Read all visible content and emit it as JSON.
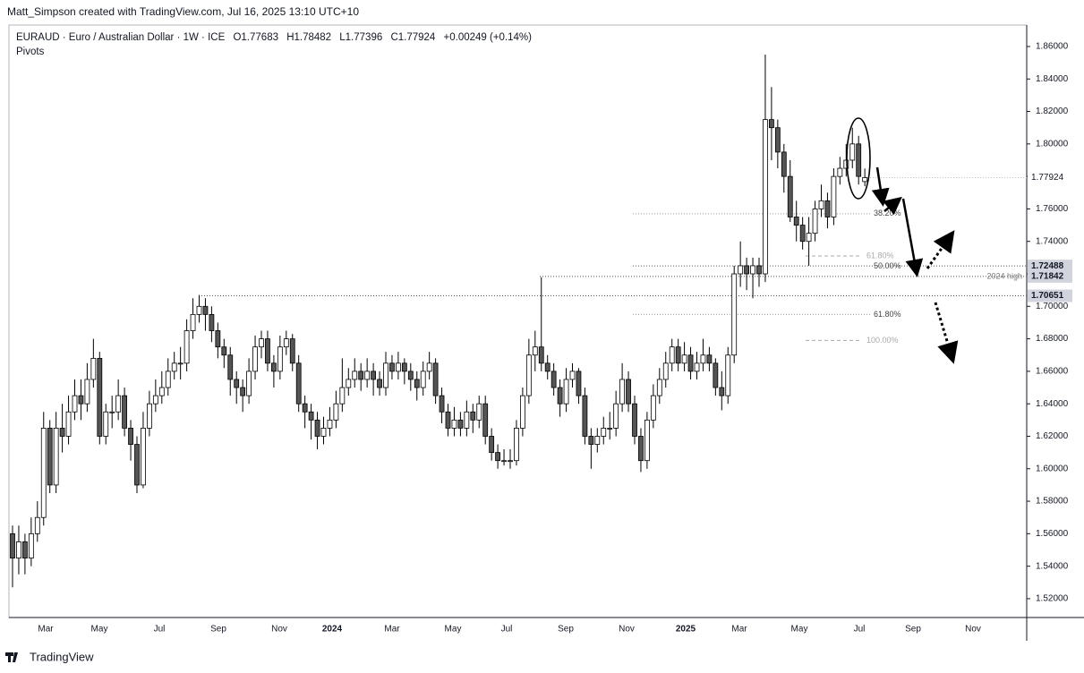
{
  "header": "Matt_Simpson created with TradingView.com, Jul 16, 2025 13:10 UTC+10",
  "footer": "TradingView",
  "chart_data": {
    "type": "candlestick",
    "title": "EURAUD · Euro / Australian Dollar · 1W · ICE",
    "legend": [
      "O1.77683",
      "H1.78482",
      "L1.77396",
      "C1.77924",
      "+0.00249 (+0.14%)"
    ],
    "indicator": "Pivots",
    "ylim": [
      1.5084,
      1.8732
    ],
    "yticks": [
      {
        "value": 1.52,
        "label": "1.52000"
      },
      {
        "value": 1.54,
        "label": "1.54000"
      },
      {
        "value": 1.56,
        "label": "1.56000"
      },
      {
        "value": 1.58,
        "label": "1.58000"
      },
      {
        "value": 1.6,
        "label": "1.60000"
      },
      {
        "value": 1.62,
        "label": "1.62000"
      },
      {
        "value": 1.64,
        "label": "1.64000"
      },
      {
        "value": 1.66,
        "label": "1.66000"
      },
      {
        "value": 1.68,
        "label": "1.68000"
      },
      {
        "value": 1.7,
        "label": "1.70000"
      },
      {
        "value": 1.72,
        "label": "1.72000"
      },
      {
        "value": 1.74,
        "label": "1.74000"
      },
      {
        "value": 1.76,
        "label": "1.76000"
      },
      {
        "value": 1.78,
        "label": "1.78000"
      },
      {
        "value": 1.8,
        "label": "1.80000"
      },
      {
        "value": 1.82,
        "label": "1.82000"
      },
      {
        "value": 1.84,
        "label": "1.84000"
      },
      {
        "value": 1.86,
        "label": "1.86000"
      }
    ],
    "x_labels": [
      "Mar",
      "May",
      "Jul",
      "Sep",
      "Nov",
      "2024",
      "Mar",
      "May",
      "Jul",
      "Sep",
      "Nov",
      "2025",
      "Mar",
      "May",
      "Jul",
      "Sep",
      "Nov"
    ],
    "bull_color": "#ffffff",
    "bear_color": "#555555",
    "levels": [
      {
        "value": 1.70651
      },
      {
        "value": 1.71842,
        "label": "2024 high"
      },
      {
        "value": 1.72488
      }
    ],
    "fib_levels": [
      {
        "label": "38.20%",
        "value": 1.757
      },
      {
        "label": "50.00%",
        "value": 1.7247
      },
      {
        "label": "61.80%",
        "value": 1.695
      }
    ],
    "fib_ext": [
      {
        "label": "61.80%",
        "value": 1.731
      },
      {
        "label": "100.00%",
        "value": 1.679
      }
    ],
    "candles": [
      [
        1.56,
        1.565,
        1.527,
        1.545
      ],
      [
        1.545,
        1.565,
        1.535,
        1.555
      ],
      [
        1.555,
        1.56,
        1.535,
        1.545
      ],
      [
        1.545,
        1.57,
        1.54,
        1.56
      ],
      [
        1.56,
        1.58,
        1.555,
        1.57
      ],
      [
        1.57,
        1.635,
        1.565,
        1.625
      ],
      [
        1.625,
        1.63,
        1.585,
        1.59
      ],
      [
        1.59,
        1.635,
        1.585,
        1.625
      ],
      [
        1.625,
        1.64,
        1.61,
        1.62
      ],
      [
        1.62,
        1.645,
        1.615,
        1.635
      ],
      [
        1.635,
        1.655,
        1.63,
        1.645
      ],
      [
        1.645,
        1.655,
        1.63,
        1.64
      ],
      [
        1.64,
        1.665,
        1.635,
        1.655
      ],
      [
        1.655,
        1.68,
        1.65,
        1.668
      ],
      [
        1.668,
        1.672,
        1.615,
        1.62
      ],
      [
        1.62,
        1.64,
        1.615,
        1.635
      ],
      [
        1.635,
        1.645,
        1.625,
        1.635
      ],
      [
        1.635,
        1.655,
        1.63,
        1.645
      ],
      [
        1.645,
        1.65,
        1.62,
        1.625
      ],
      [
        1.625,
        1.63,
        1.605,
        1.615
      ],
      [
        1.615,
        1.62,
        1.585,
        1.59
      ],
      [
        1.59,
        1.635,
        1.588,
        1.625
      ],
      [
        1.625,
        1.648,
        1.62,
        1.64
      ],
      [
        1.64,
        1.655,
        1.635,
        1.645
      ],
      [
        1.645,
        1.66,
        1.64,
        1.65
      ],
      [
        1.65,
        1.668,
        1.645,
        1.66
      ],
      [
        1.66,
        1.672,
        1.655,
        1.665
      ],
      [
        1.665,
        1.675,
        1.655,
        1.665
      ],
      [
        1.665,
        1.692,
        1.66,
        1.685
      ],
      [
        1.685,
        1.705,
        1.68,
        1.695
      ],
      [
        1.695,
        1.707,
        1.69,
        1.7
      ],
      [
        1.7,
        1.705,
        1.685,
        1.695
      ],
      [
        1.695,
        1.7,
        1.678,
        1.685
      ],
      [
        1.685,
        1.69,
        1.668,
        1.675
      ],
      [
        1.675,
        1.68,
        1.662,
        1.67
      ],
      [
        1.67,
        1.675,
        1.645,
        1.655
      ],
      [
        1.655,
        1.66,
        1.64,
        1.65
      ],
      [
        1.65,
        1.655,
        1.635,
        1.645
      ],
      [
        1.645,
        1.668,
        1.64,
        1.66
      ],
      [
        1.66,
        1.682,
        1.655,
        1.675
      ],
      [
        1.675,
        1.685,
        1.668,
        1.68
      ],
      [
        1.68,
        1.685,
        1.66,
        1.665
      ],
      [
        1.665,
        1.67,
        1.65,
        1.66
      ],
      [
        1.66,
        1.682,
        1.655,
        1.675
      ],
      [
        1.675,
        1.685,
        1.67,
        1.68
      ],
      [
        1.68,
        1.683,
        1.66,
        1.665
      ],
      [
        1.665,
        1.67,
        1.635,
        1.64
      ],
      [
        1.64,
        1.645,
        1.625,
        1.635
      ],
      [
        1.635,
        1.64,
        1.618,
        1.63
      ],
      [
        1.63,
        1.635,
        1.612,
        1.62
      ],
      [
        1.62,
        1.632,
        1.615,
        1.625
      ],
      [
        1.625,
        1.638,
        1.62,
        1.63
      ],
      [
        1.63,
        1.648,
        1.625,
        1.64
      ],
      [
        1.64,
        1.668,
        1.635,
        1.65
      ],
      [
        1.65,
        1.662,
        1.645,
        1.655
      ],
      [
        1.655,
        1.668,
        1.65,
        1.66
      ],
      [
        1.66,
        1.665,
        1.648,
        1.655
      ],
      [
        1.655,
        1.668,
        1.65,
        1.66
      ],
      [
        1.66,
        1.665,
        1.645,
        1.655
      ],
      [
        1.655,
        1.66,
        1.645,
        1.65
      ],
      [
        1.65,
        1.672,
        1.645,
        1.665
      ],
      [
        1.665,
        1.67,
        1.655,
        1.66
      ],
      [
        1.66,
        1.672,
        1.655,
        1.665
      ],
      [
        1.665,
        1.668,
        1.652,
        1.66
      ],
      [
        1.66,
        1.665,
        1.648,
        1.655
      ],
      [
        1.655,
        1.66,
        1.642,
        1.65
      ],
      [
        1.65,
        1.666,
        1.645,
        1.66
      ],
      [
        1.66,
        1.672,
        1.655,
        1.665
      ],
      [
        1.665,
        1.668,
        1.64,
        1.645
      ],
      [
        1.645,
        1.65,
        1.628,
        1.635
      ],
      [
        1.635,
        1.64,
        1.62,
        1.625
      ],
      [
        1.625,
        1.638,
        1.62,
        1.63
      ],
      [
        1.63,
        1.635,
        1.62,
        1.625
      ],
      [
        1.625,
        1.642,
        1.62,
        1.635
      ],
      [
        1.635,
        1.64,
        1.622,
        1.63
      ],
      [
        1.63,
        1.645,
        1.625,
        1.64
      ],
      [
        1.64,
        1.645,
        1.615,
        1.62
      ],
      [
        1.62,
        1.625,
        1.605,
        1.61
      ],
      [
        1.61,
        1.615,
        1.6,
        1.605
      ],
      [
        1.605,
        1.612,
        1.602,
        1.605
      ],
      [
        1.605,
        1.612,
        1.6,
        1.605
      ],
      [
        1.605,
        1.63,
        1.602,
        1.625
      ],
      [
        1.625,
        1.65,
        1.62,
        1.645
      ],
      [
        1.645,
        1.68,
        1.64,
        1.67
      ],
      [
        1.67,
        1.685,
        1.66,
        1.675
      ],
      [
        1.675,
        1.718,
        1.66,
        1.665
      ],
      [
        1.665,
        1.67,
        1.655,
        1.66
      ],
      [
        1.66,
        1.665,
        1.645,
        1.65
      ],
      [
        1.65,
        1.655,
        1.632,
        1.64
      ],
      [
        1.64,
        1.662,
        1.635,
        1.655
      ],
      [
        1.655,
        1.665,
        1.65,
        1.66
      ],
      [
        1.66,
        1.662,
        1.64,
        1.645
      ],
      [
        1.645,
        1.65,
        1.615,
        1.62
      ],
      [
        1.62,
        1.625,
        1.6,
        1.615
      ],
      [
        1.615,
        1.625,
        1.61,
        1.62
      ],
      [
        1.62,
        1.632,
        1.615,
        1.625
      ],
      [
        1.625,
        1.635,
        1.618,
        1.625
      ],
      [
        1.625,
        1.648,
        1.62,
        1.64
      ],
      [
        1.64,
        1.665,
        1.635,
        1.655
      ],
      [
        1.655,
        1.66,
        1.635,
        1.64
      ],
      [
        1.64,
        1.645,
        1.615,
        1.62
      ],
      [
        1.62,
        1.625,
        1.598,
        1.605
      ],
      [
        1.605,
        1.635,
        1.6,
        1.63
      ],
      [
        1.63,
        1.652,
        1.625,
        1.645
      ],
      [
        1.645,
        1.662,
        1.64,
        1.655
      ],
      [
        1.655,
        1.672,
        1.65,
        1.665
      ],
      [
        1.665,
        1.68,
        1.66,
        1.675
      ],
      [
        1.675,
        1.68,
        1.66,
        1.665
      ],
      [
        1.665,
        1.678,
        1.66,
        1.67
      ],
      [
        1.67,
        1.675,
        1.655,
        1.66
      ],
      [
        1.66,
        1.672,
        1.655,
        1.665
      ],
      [
        1.665,
        1.68,
        1.66,
        1.67
      ],
      [
        1.67,
        1.675,
        1.66,
        1.665
      ],
      [
        1.665,
        1.668,
        1.645,
        1.65
      ],
      [
        1.65,
        1.66,
        1.636,
        1.645
      ],
      [
        1.645,
        1.675,
        1.64,
        1.67
      ],
      [
        1.67,
        1.725,
        1.665,
        1.72
      ],
      [
        1.72,
        1.74,
        1.712,
        1.725
      ],
      [
        1.725,
        1.73,
        1.71,
        1.72
      ],
      [
        1.72,
        1.73,
        1.705,
        1.725
      ],
      [
        1.725,
        1.73,
        1.712,
        1.72
      ],
      [
        1.72,
        1.855,
        1.715,
        1.815
      ],
      [
        1.815,
        1.835,
        1.79,
        1.81
      ],
      [
        1.81,
        1.815,
        1.785,
        1.795
      ],
      [
        1.795,
        1.8,
        1.77,
        1.78
      ],
      [
        1.78,
        1.79,
        1.752,
        1.755
      ],
      [
        1.755,
        1.765,
        1.74,
        1.75
      ],
      [
        1.75,
        1.755,
        1.735,
        1.74
      ],
      [
        1.74,
        1.755,
        1.725,
        1.745
      ],
      [
        1.745,
        1.765,
        1.74,
        1.76
      ],
      [
        1.76,
        1.775,
        1.755,
        1.765
      ],
      [
        1.765,
        1.77,
        1.748,
        1.755
      ],
      [
        1.755,
        1.785,
        1.75,
        1.78
      ],
      [
        1.78,
        1.792,
        1.775,
        1.785
      ],
      [
        1.785,
        1.8,
        1.78,
        1.79
      ],
      [
        1.79,
        1.81,
        1.785,
        1.8
      ],
      [
        1.8,
        1.805,
        1.775,
        1.78
      ],
      [
        1.77683,
        1.78482,
        1.77396,
        1.77924
      ]
    ]
  }
}
